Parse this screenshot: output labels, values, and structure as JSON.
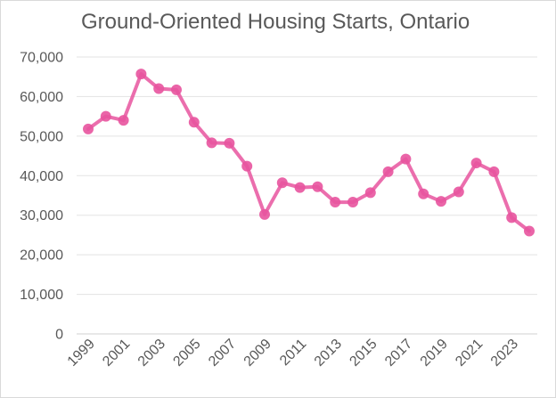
{
  "chart_data": {
    "type": "line",
    "title": "Ground-Oriented Housing Starts, Ontario",
    "xlabel": "",
    "ylabel": "",
    "ylim": [
      0,
      70000
    ],
    "y_ticks": [
      0,
      10000,
      20000,
      30000,
      40000,
      50000,
      60000,
      70000
    ],
    "y_tick_labels": [
      "0",
      "10,000",
      "20,000",
      "30,000",
      "40,000",
      "50,000",
      "60,000",
      "70,000"
    ],
    "x_tick_labels": [
      "1999",
      "2001",
      "2003",
      "2005",
      "2007",
      "2009",
      "2011",
      "2013",
      "2015",
      "2017",
      "2019",
      "2021",
      "2023"
    ],
    "grid": true,
    "legend": "none",
    "line_color": "#e8559f",
    "series": [
      {
        "name": "Ground-Oriented Housing Starts",
        "x": [
          1999,
          2000,
          2001,
          2002,
          2003,
          2004,
          2005,
          2006,
          2007,
          2008,
          2009,
          2010,
          2011,
          2012,
          2013,
          2014,
          2015,
          2016,
          2017,
          2018,
          2019,
          2020,
          2021,
          2022,
          2023,
          2024
        ],
        "values": [
          51800,
          55000,
          54000,
          65700,
          62000,
          61700,
          53500,
          48300,
          48200,
          42400,
          30200,
          38200,
          37000,
          37200,
          33300,
          33300,
          35700,
          41000,
          44200,
          35400,
          33500,
          35900,
          43200,
          41000,
          29400,
          26000
        ]
      }
    ]
  }
}
